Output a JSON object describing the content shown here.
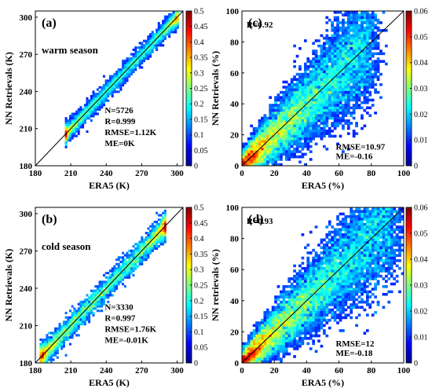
{
  "chart_data": [
    {
      "id": "a",
      "type": "scatter",
      "panel_label": "(a)",
      "annotation": "warm season",
      "xlabel": "ERA5 (K)",
      "ylabel": "NN Retrievals (K)",
      "xlim": [
        180,
        305
      ],
      "ylim": [
        180,
        305
      ],
      "xticks": [
        "180",
        "210",
        "240",
        "270",
        "300"
      ],
      "yticks": [
        "180",
        "210",
        "240",
        "270",
        "300"
      ],
      "colorbar": {
        "min": 0,
        "max": 0.5,
        "ticks": [
          "0",
          "0.05",
          "0.1",
          "0.15",
          "0.2",
          "0.25",
          "0.3",
          "0.35",
          "0.4",
          "0.45",
          "0.5"
        ]
      },
      "stats": [
        "N=5726",
        "R=0.999",
        "RMSE=1.12K",
        "ME=0K"
      ],
      "cloud": {
        "x_range": [
          205,
          300
        ],
        "spread": 3.5
      }
    },
    {
      "id": "c",
      "type": "scatter",
      "panel_label": "(c)",
      "annotation": "",
      "xlabel": "ERA5 (%)",
      "ylabel": "NN Retrievals (%)",
      "xlim": [
        0,
        100
      ],
      "ylim": [
        0,
        100
      ],
      "xticks": [
        "0",
        "20",
        "40",
        "60",
        "80",
        "100"
      ],
      "yticks": [
        "0",
        "20",
        "40",
        "60",
        "80",
        "100"
      ],
      "colorbar": {
        "min": 0,
        "max": 0.06,
        "ticks": [
          "0",
          "0.01",
          "0.02",
          "0.03",
          "0.04",
          "0.05",
          "0.06"
        ]
      },
      "stats": [
        "R=0.92",
        "RMSE=10.97",
        "ME=-0.16"
      ],
      "cloud": {
        "x_range": [
          0,
          80
        ],
        "spread": 11
      }
    },
    {
      "id": "b",
      "type": "scatter",
      "panel_label": "(b)",
      "annotation": "cold season",
      "xlabel": "ERA5 (K)",
      "ylabel": "NN Retrievals (K)",
      "xlim": [
        180,
        305
      ],
      "ylim": [
        180,
        305
      ],
      "xticks": [
        "180",
        "210",
        "240",
        "270",
        "300"
      ],
      "yticks": [
        "180",
        "210",
        "240",
        "270",
        "300"
      ],
      "colorbar": {
        "min": 0,
        "max": 0.5,
        "ticks": [
          "0",
          "0.05",
          "0.1",
          "0.15",
          "0.2",
          "0.25",
          "0.3",
          "0.35",
          "0.4",
          "0.45",
          "0.5"
        ]
      },
      "stats": [
        "N=3330",
        "R=0.997",
        "RMSE=1.76K",
        "ME=-0.01K"
      ],
      "cloud": {
        "x_range": [
          185,
          290
        ],
        "spread": 4.5
      }
    },
    {
      "id": "d",
      "type": "scatter",
      "panel_label": "(d)",
      "annotation": "",
      "xlabel": "ERA5 (%)",
      "ylabel": "NN retrievals (%)",
      "xlim": [
        0,
        100
      ],
      "ylim": [
        0,
        100
      ],
      "xticks": [
        "0",
        "20",
        "40",
        "60",
        "80",
        "100"
      ],
      "yticks": [
        "0",
        "20",
        "40",
        "60",
        "80",
        "100"
      ],
      "colorbar": {
        "min": 0,
        "max": 0.06,
        "ticks": [
          "0",
          "0.01",
          "0.02",
          "0.03",
          "0.04",
          "0.05",
          "0.06"
        ]
      },
      "stats": [
        "R=0.93",
        "RMSE=12",
        "ME=-0.18"
      ],
      "cloud": {
        "x_range": [
          0,
          95
        ],
        "spread": 10
      }
    }
  ]
}
